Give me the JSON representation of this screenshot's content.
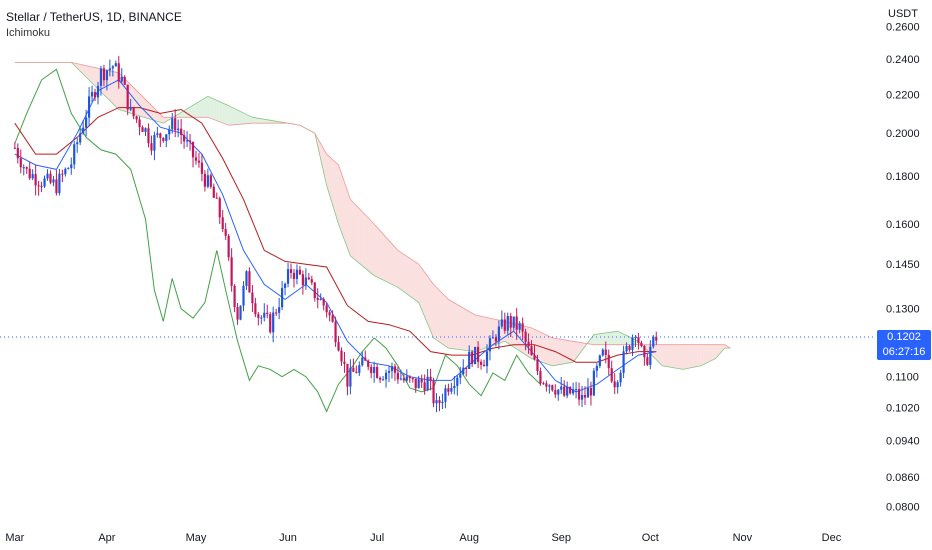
{
  "header": {
    "title": "Stellar / TetherUS, 1D, BINANCE",
    "indicator": "Ichimoku"
  },
  "price_label": {
    "price": "0.1202",
    "timer": "06:27:16"
  },
  "colors": {
    "up": "#2156d9",
    "down": "#c2185b",
    "tenkan": "#2962ff",
    "kijun": "#b71c1c",
    "chikou": "#43a047",
    "cloud_bear": "#f7c6c6",
    "cloud_bull": "#c8e6c9",
    "price_box": "#2962ff"
  },
  "chart_data": {
    "type": "candlestick",
    "title": "Stellar / TetherUS, 1D, BINANCE",
    "indicator": "Ichimoku",
    "y_axis": {
      "label": "USDT",
      "scale": "log",
      "range": [
        0.077,
        0.272
      ],
      "ticks": [
        "0.2600",
        "0.2400",
        "0.2200",
        "0.2000",
        "0.1800",
        "0.1600",
        "0.1450",
        "0.1300",
        "0.1100",
        "0.1020",
        "0.0940",
        "0.0860",
        "0.0800"
      ]
    },
    "x_axis": {
      "ticks": [
        "Mar",
        "Apr",
        "May",
        "Jun",
        "Jul",
        "Aug",
        "Sep",
        "Oct",
        "Nov",
        "Dec"
      ]
    },
    "last_price": 0.1202,
    "price_path": [
      [
        "2021-03-01",
        0.193
      ],
      [
        "2021-03-05",
        0.182
      ],
      [
        "2021-03-10",
        0.178
      ],
      [
        "2021-03-15",
        0.176
      ],
      [
        "2021-03-20",
        0.186
      ],
      [
        "2021-03-25",
        0.21
      ],
      [
        "2021-03-30",
        0.232
      ],
      [
        "2021-04-03",
        0.236
      ],
      [
        "2021-04-06",
        0.228
      ],
      [
        "2021-04-09",
        0.21
      ],
      [
        "2021-04-13",
        0.204
      ],
      [
        "2021-04-16",
        0.196
      ],
      [
        "2021-04-20",
        0.2
      ],
      [
        "2021-04-24",
        0.205
      ],
      [
        "2021-04-28",
        0.194
      ],
      [
        "2021-05-02",
        0.184
      ],
      [
        "2021-05-06",
        0.174
      ],
      [
        "2021-05-10",
        0.16
      ],
      [
        "2021-05-13",
        0.138
      ],
      [
        "2021-05-15",
        0.128
      ],
      [
        "2021-05-18",
        0.14
      ],
      [
        "2021-05-22",
        0.128
      ],
      [
        "2021-05-26",
        0.125
      ],
      [
        "2021-05-30",
        0.135
      ],
      [
        "2021-06-02",
        0.143
      ],
      [
        "2021-06-06",
        0.14
      ],
      [
        "2021-06-10",
        0.135
      ],
      [
        "2021-06-14",
        0.13
      ],
      [
        "2021-06-18",
        0.12
      ],
      [
        "2021-06-21",
        0.109
      ],
      [
        "2021-06-24",
        0.112
      ],
      [
        "2021-06-28",
        0.114
      ],
      [
        "2021-07-02",
        0.111
      ],
      [
        "2021-07-06",
        0.112
      ],
      [
        "2021-07-10",
        0.109
      ],
      [
        "2021-07-14",
        0.108
      ],
      [
        "2021-07-18",
        0.109
      ],
      [
        "2021-07-21",
        0.102
      ],
      [
        "2021-07-25",
        0.108
      ],
      [
        "2021-07-29",
        0.112
      ],
      [
        "2021-08-02",
        0.116
      ],
      [
        "2021-08-06",
        0.115
      ],
      [
        "2021-08-10",
        0.122
      ],
      [
        "2021-08-14",
        0.126
      ],
      [
        "2021-08-18",
        0.124
      ],
      [
        "2021-08-22",
        0.115
      ],
      [
        "2021-08-25",
        0.11
      ],
      [
        "2021-08-29",
        0.108
      ],
      [
        "2021-09-02",
        0.105
      ],
      [
        "2021-09-05",
        0.106
      ],
      [
        "2021-09-08",
        0.104
      ],
      [
        "2021-09-11",
        0.107
      ],
      [
        "2021-09-15",
        0.116
      ],
      [
        "2021-09-19",
        0.109
      ],
      [
        "2021-09-22",
        0.115
      ],
      [
        "2021-09-26",
        0.124
      ],
      [
        "2021-09-29",
        0.113
      ],
      [
        "2021-10-01",
        0.118
      ],
      [
        "2021-10-03",
        0.1202
      ]
    ],
    "tenkan_sen": [
      [
        "2021-03-01",
        0.19
      ],
      [
        "2021-03-08",
        0.185
      ],
      [
        "2021-03-15",
        0.183
      ],
      [
        "2021-03-22",
        0.2
      ],
      [
        "2021-03-29",
        0.222
      ],
      [
        "2021-04-05",
        0.228
      ],
      [
        "2021-04-12",
        0.214
      ],
      [
        "2021-04-19",
        0.203
      ],
      [
        "2021-04-26",
        0.2
      ],
      [
        "2021-05-03",
        0.19
      ],
      [
        "2021-05-10",
        0.172
      ],
      [
        "2021-05-17",
        0.15
      ],
      [
        "2021-05-24",
        0.138
      ],
      [
        "2021-05-31",
        0.133
      ],
      [
        "2021-06-07",
        0.138
      ],
      [
        "2021-06-14",
        0.132
      ],
      [
        "2021-06-21",
        0.12
      ],
      [
        "2021-06-28",
        0.114
      ],
      [
        "2021-07-05",
        0.113
      ],
      [
        "2021-07-12",
        0.11
      ],
      [
        "2021-07-19",
        0.109
      ],
      [
        "2021-07-26",
        0.109
      ],
      [
        "2021-08-02",
        0.114
      ],
      [
        "2021-08-09",
        0.119
      ],
      [
        "2021-08-16",
        0.123
      ],
      [
        "2021-08-23",
        0.116
      ],
      [
        "2021-08-30",
        0.109
      ],
      [
        "2021-09-06",
        0.106
      ],
      [
        "2021-09-13",
        0.108
      ],
      [
        "2021-09-20",
        0.112
      ],
      [
        "2021-09-27",
        0.116
      ],
      [
        "2021-10-03",
        0.117
      ]
    ],
    "kijun_sen": [
      [
        "2021-03-01",
        0.205
      ],
      [
        "2021-03-08",
        0.19
      ],
      [
        "2021-03-15",
        0.19
      ],
      [
        "2021-03-22",
        0.198
      ],
      [
        "2021-03-29",
        0.208
      ],
      [
        "2021-04-05",
        0.213
      ],
      [
        "2021-04-12",
        0.213
      ],
      [
        "2021-04-19",
        0.21
      ],
      [
        "2021-04-26",
        0.212
      ],
      [
        "2021-05-03",
        0.205
      ],
      [
        "2021-05-10",
        0.188
      ],
      [
        "2021-05-17",
        0.17
      ],
      [
        "2021-05-24",
        0.15
      ],
      [
        "2021-05-31",
        0.146
      ],
      [
        "2021-06-07",
        0.145
      ],
      [
        "2021-06-14",
        0.144
      ],
      [
        "2021-06-21",
        0.131
      ],
      [
        "2021-06-28",
        0.126
      ],
      [
        "2021-07-05",
        0.125
      ],
      [
        "2021-07-12",
        0.123
      ],
      [
        "2021-07-19",
        0.117
      ],
      [
        "2021-07-26",
        0.116
      ],
      [
        "2021-08-02",
        0.116
      ],
      [
        "2021-08-09",
        0.118
      ],
      [
        "2021-08-16",
        0.119
      ],
      [
        "2021-08-23",
        0.119
      ],
      [
        "2021-08-30",
        0.117
      ],
      [
        "2021-09-06",
        0.114
      ],
      [
        "2021-09-13",
        0.114
      ],
      [
        "2021-09-20",
        0.116
      ],
      [
        "2021-09-27",
        0.117
      ],
      [
        "2021-10-03",
        0.117
      ]
    ],
    "chikou_span": [
      [
        "2021-03-01",
        0.195
      ],
      [
        "2021-03-05",
        0.21
      ],
      [
        "2021-03-10",
        0.228
      ],
      [
        "2021-03-15",
        0.234
      ],
      [
        "2021-03-20",
        0.21
      ],
      [
        "2021-03-25",
        0.198
      ],
      [
        "2021-03-30",
        0.192
      ],
      [
        "2021-04-04",
        0.19
      ],
      [
        "2021-04-09",
        0.183
      ],
      [
        "2021-04-14",
        0.162
      ],
      [
        "2021-04-17",
        0.136
      ],
      [
        "2021-04-20",
        0.126
      ],
      [
        "2021-04-23",
        0.14
      ],
      [
        "2021-04-26",
        0.13
      ],
      [
        "2021-04-30",
        0.127
      ],
      [
        "2021-05-04",
        0.132
      ],
      [
        "2021-05-08",
        0.15
      ],
      [
        "2021-05-11",
        0.136
      ],
      [
        "2021-05-15",
        0.12
      ],
      [
        "2021-05-19",
        0.109
      ],
      [
        "2021-05-22",
        0.113
      ],
      [
        "2021-05-26",
        0.112
      ],
      [
        "2021-05-30",
        0.11
      ],
      [
        "2021-06-03",
        0.112
      ],
      [
        "2021-06-07",
        0.11
      ],
      [
        "2021-06-11",
        0.106
      ],
      [
        "2021-06-14",
        0.101
      ],
      [
        "2021-06-18",
        0.108
      ],
      [
        "2021-06-22",
        0.112
      ],
      [
        "2021-06-26",
        0.117
      ],
      [
        "2021-06-30",
        0.121
      ],
      [
        "2021-07-04",
        0.118
      ],
      [
        "2021-07-08",
        0.113
      ],
      [
        "2021-07-12",
        0.107
      ],
      [
        "2021-07-16",
        0.106
      ],
      [
        "2021-07-20",
        0.107
      ],
      [
        "2021-07-24",
        0.116
      ],
      [
        "2021-07-28",
        0.113
      ],
      [
        "2021-08-01",
        0.108
      ],
      [
        "2021-08-05",
        0.105
      ],
      [
        "2021-08-09",
        0.111
      ],
      [
        "2021-08-13",
        0.109
      ],
      [
        "2021-08-17",
        0.116
      ],
      [
        "2021-08-21",
        0.111
      ],
      [
        "2021-08-25",
        0.108
      ]
    ],
    "senkou_a": [
      [
        "2021-03-01",
        0.238
      ],
      [
        "2021-03-20",
        0.238
      ],
      [
        "2021-04-05",
        0.212
      ],
      [
        "2021-04-20",
        0.205
      ],
      [
        "2021-05-05",
        0.219
      ],
      [
        "2021-05-12",
        0.214
      ],
      [
        "2021-05-20",
        0.208
      ],
      [
        "2021-06-01",
        0.205
      ],
      [
        "2021-06-05",
        0.204
      ],
      [
        "2021-06-10",
        0.2
      ],
      [
        "2021-06-14",
        0.176
      ],
      [
        "2021-06-18",
        0.16
      ],
      [
        "2021-06-22",
        0.148
      ],
      [
        "2021-06-30",
        0.141
      ],
      [
        "2021-07-08",
        0.137
      ],
      [
        "2021-07-15",
        0.132
      ],
      [
        "2021-07-20",
        0.121
      ],
      [
        "2021-07-25",
        0.118
      ],
      [
        "2021-08-03",
        0.117
      ],
      [
        "2021-08-13",
        0.12
      ],
      [
        "2021-08-22",
        0.115
      ],
      [
        "2021-08-29",
        0.113
      ],
      [
        "2021-09-05",
        0.114
      ],
      [
        "2021-09-12",
        0.122
      ],
      [
        "2021-09-20",
        0.123
      ],
      [
        "2021-09-27",
        0.12
      ],
      [
        "2021-10-05",
        0.113
      ],
      [
        "2021-10-12",
        0.112
      ],
      [
        "2021-10-18",
        0.113
      ],
      [
        "2021-10-23",
        0.115
      ],
      [
        "2021-10-26",
        0.118
      ],
      [
        "2021-10-28",
        0.118
      ]
    ],
    "senkou_b": [
      [
        "2021-03-01",
        0.238
      ],
      [
        "2021-03-20",
        0.238
      ],
      [
        "2021-04-05",
        0.232
      ],
      [
        "2021-04-20",
        0.208
      ],
      [
        "2021-05-05",
        0.208
      ],
      [
        "2021-05-12",
        0.204
      ],
      [
        "2021-05-20",
        0.205
      ],
      [
        "2021-06-01",
        0.205
      ],
      [
        "2021-06-05",
        0.204
      ],
      [
        "2021-06-10",
        0.2
      ],
      [
        "2021-06-14",
        0.19
      ],
      [
        "2021-06-18",
        0.185
      ],
      [
        "2021-06-22",
        0.17
      ],
      [
        "2021-06-30",
        0.16
      ],
      [
        "2021-07-08",
        0.15
      ],
      [
        "2021-07-15",
        0.145
      ],
      [
        "2021-07-20",
        0.138
      ],
      [
        "2021-07-25",
        0.133
      ],
      [
        "2021-08-03",
        0.128
      ],
      [
        "2021-08-13",
        0.126
      ],
      [
        "2021-08-22",
        0.124
      ],
      [
        "2021-08-29",
        0.121
      ],
      [
        "2021-09-05",
        0.12
      ],
      [
        "2021-09-12",
        0.119
      ],
      [
        "2021-09-20",
        0.119
      ],
      [
        "2021-09-27",
        0.119
      ],
      [
        "2021-10-05",
        0.119
      ],
      [
        "2021-10-12",
        0.119
      ],
      [
        "2021-10-18",
        0.119
      ],
      [
        "2021-10-23",
        0.119
      ],
      [
        "2021-10-26",
        0.119
      ],
      [
        "2021-10-28",
        0.118
      ]
    ]
  }
}
